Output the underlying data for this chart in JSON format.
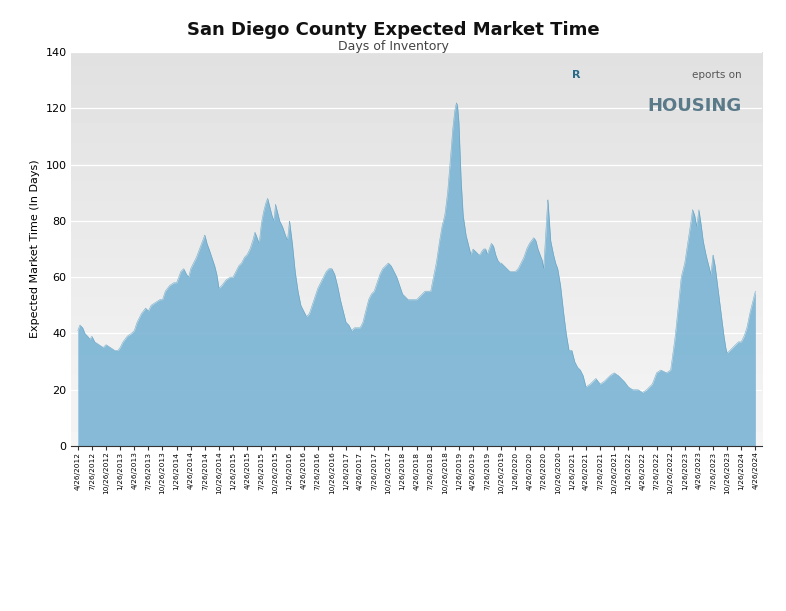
{
  "title": "San Diego County Expected Market Time",
  "subtitle": "Days of Inventory",
  "ylabel": "Expected Market Time (In Days)",
  "fill_color": "#7ab4d4",
  "line_color": "#5a9ec0",
  "fig_bg": "#ffffff",
  "ylim": [
    0,
    140
  ],
  "yticks": [
    0,
    20,
    40,
    60,
    80,
    100,
    120,
    140
  ],
  "grid_color": "#ffffff",
  "tick_labels": [
    "4/26/2012",
    "7/26/2012",
    "10/26/2012",
    "1/26/2013",
    "4/26/2013",
    "7/26/2013",
    "10/26/2013",
    "1/26/2014",
    "4/26/2014",
    "7/26/2014",
    "10/26/2014",
    "1/26/2015",
    "4/26/2015",
    "7/26/2015",
    "10/26/2015",
    "1/26/2016",
    "4/26/2016",
    "7/26/2016",
    "10/26/2016",
    "1/26/2017",
    "4/26/2017",
    "7/26/2017",
    "10/26/2017",
    "1/26/2018",
    "4/26/2018",
    "7/26/2018",
    "10/26/2018",
    "1/26/2019",
    "4/26/2019",
    "7/26/2019",
    "10/26/2019",
    "1/26/2020",
    "4/26/2020",
    "7/26/2020",
    "10/26/2020",
    "1/26/2021",
    "4/26/2021",
    "7/26/2021",
    "10/26/2021",
    "1/26/2022",
    "4/26/2022",
    "7/26/2022",
    "10/26/2022",
    "1/26/2023",
    "4/26/2023",
    "7/26/2023",
    "10/26/2023",
    "1/26/2024",
    "4/26/2024"
  ],
  "detail_x": [
    0.0,
    0.15,
    0.35,
    0.5,
    0.7,
    0.85,
    1.0,
    1.2,
    1.5,
    1.8,
    2.0,
    2.3,
    2.6,
    2.85,
    3.0,
    3.2,
    3.5,
    3.8,
    4.0,
    4.2,
    4.5,
    4.8,
    5.0,
    5.2,
    5.5,
    5.8,
    6.0,
    6.2,
    6.5,
    6.8,
    7.0,
    7.15,
    7.3,
    7.5,
    7.7,
    7.85,
    8.0,
    8.2,
    8.4,
    8.55,
    8.7,
    8.85,
    9.0,
    9.15,
    9.3,
    9.5,
    9.7,
    9.85,
    10.0,
    10.2,
    10.5,
    10.8,
    11.0,
    11.2,
    11.4,
    11.6,
    11.8,
    12.0,
    12.2,
    12.4,
    12.55,
    12.7,
    12.85,
    13.0,
    13.15,
    13.3,
    13.45,
    13.6,
    13.75,
    13.9,
    14.0,
    14.15,
    14.3,
    14.5,
    14.7,
    14.85,
    15.0,
    15.2,
    15.4,
    15.6,
    15.8,
    16.0,
    16.2,
    16.4,
    16.6,
    16.8,
    17.0,
    17.2,
    17.4,
    17.6,
    17.8,
    18.0,
    18.2,
    18.4,
    18.6,
    18.8,
    19.0,
    19.2,
    19.4,
    19.6,
    19.8,
    20.0,
    20.2,
    20.4,
    20.6,
    20.8,
    21.0,
    21.2,
    21.4,
    21.6,
    21.8,
    22.0,
    22.2,
    22.4,
    22.6,
    22.8,
    23.0,
    23.2,
    23.4,
    23.6,
    23.8,
    24.0,
    24.2,
    24.4,
    24.6,
    24.8,
    25.0,
    25.2,
    25.4,
    25.6,
    25.8,
    26.0,
    26.2,
    26.4,
    26.55,
    26.7,
    26.82,
    26.9,
    27.0,
    27.15,
    27.3,
    27.5,
    27.7,
    27.85,
    28.0,
    28.2,
    28.4,
    28.5,
    28.6,
    28.75,
    28.9,
    29.0,
    29.15,
    29.3,
    29.45,
    29.6,
    29.75,
    29.9,
    30.0,
    30.2,
    30.4,
    30.6,
    30.8,
    31.0,
    31.2,
    31.4,
    31.6,
    31.8,
    32.0,
    32.15,
    32.3,
    32.45,
    32.6,
    32.75,
    32.9,
    33.0,
    33.15,
    33.3,
    33.5,
    33.7,
    33.85,
    34.0,
    34.2,
    34.4,
    34.6,
    34.8,
    35.0,
    35.2,
    35.4,
    35.6,
    35.8,
    36.0,
    36.3,
    36.7,
    37.0,
    37.3,
    37.7,
    38.0,
    38.3,
    38.7,
    39.0,
    39.3,
    39.7,
    40.0,
    40.3,
    40.7,
    41.0,
    41.3,
    41.7,
    42.0,
    42.3,
    42.55,
    42.75,
    43.0,
    43.15,
    43.3,
    43.45,
    43.55,
    43.7,
    43.85,
    44.0,
    44.15,
    44.3,
    44.5,
    44.7,
    44.85,
    45.0,
    45.15,
    45.3,
    45.45,
    45.6,
    45.75,
    45.9,
    46.0,
    46.2,
    46.4,
    46.6,
    46.8,
    47.0,
    47.2,
    47.4,
    47.6,
    47.8,
    48.0
  ],
  "detail_y": [
    41,
    43,
    42,
    40,
    39,
    38,
    39,
    37,
    36,
    35,
    36,
    35,
    34,
    34,
    35,
    37,
    39,
    40,
    41,
    44,
    47,
    49,
    48,
    50,
    51,
    52,
    52,
    55,
    57,
    58,
    58,
    60,
    62,
    63,
    61,
    60,
    63,
    65,
    67,
    69,
    71,
    73,
    75,
    72,
    70,
    67,
    64,
    61,
    56,
    57,
    59,
    60,
    60,
    62,
    64,
    65,
    67,
    68,
    70,
    73,
    76,
    74,
    72,
    79,
    83,
    86,
    88,
    85,
    82,
    80,
    86,
    83,
    80,
    78,
    75,
    73,
    80,
    72,
    62,
    55,
    50,
    48,
    46,
    47,
    50,
    53,
    56,
    58,
    60,
    62,
    63,
    63,
    61,
    57,
    52,
    48,
    44,
    43,
    41,
    42,
    42,
    42,
    44,
    48,
    52,
    54,
    55,
    58,
    61,
    63,
    64,
    65,
    64,
    62,
    60,
    57,
    54,
    53,
    52,
    52,
    52,
    52,
    53,
    54,
    55,
    55,
    55,
    60,
    65,
    72,
    78,
    82,
    90,
    102,
    112,
    119,
    122,
    121,
    115,
    95,
    82,
    75,
    71,
    68,
    70,
    69,
    68,
    68,
    69,
    70,
    70,
    68,
    70,
    72,
    71,
    68,
    66,
    65,
    65,
    64,
    63,
    62,
    62,
    62,
    63,
    65,
    67,
    70,
    72,
    73,
    74,
    73,
    70,
    68,
    66,
    63,
    75,
    88,
    73,
    68,
    65,
    63,
    57,
    48,
    40,
    34,
    34,
    30,
    28,
    27,
    25,
    21,
    22,
    24,
    22,
    23,
    25,
    26,
    25,
    23,
    21,
    20,
    20,
    19,
    20,
    22,
    26,
    27,
    26,
    27,
    38,
    50,
    60,
    65,
    70,
    75,
    80,
    84,
    82,
    78,
    84,
    79,
    73,
    68,
    64,
    61,
    68,
    64,
    58,
    52,
    46,
    40,
    35,
    33,
    34,
    35,
    36,
    37,
    37,
    39,
    42,
    47,
    51,
    55
  ]
}
